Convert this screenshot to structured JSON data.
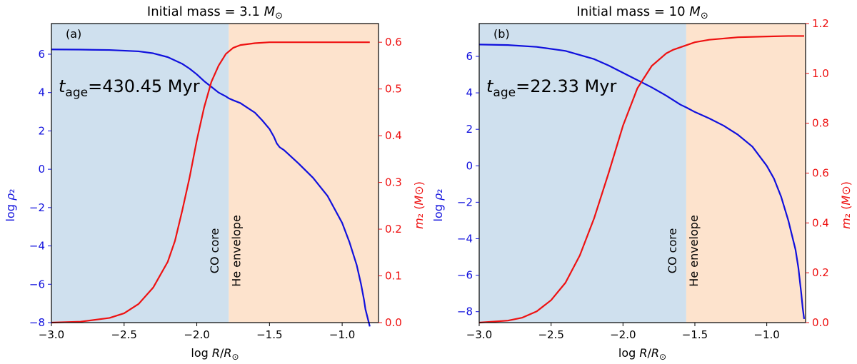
{
  "chart_data": [
    {
      "type": "line",
      "title": "Initial mass = 3.1 M⊙",
      "panel_label": "(a)",
      "age_label": "t_age=430.45 Myr",
      "xlabel": "log R/R⊙",
      "ylabel_left": "log ρ₂",
      "ylabel_right": "m₂ (M⊙)",
      "xlim": [
        -3.0,
        -0.75
      ],
      "ylim_left": [
        -8,
        7.6
      ],
      "ylim_right": [
        0,
        0.64
      ],
      "x_ticks": [
        -3.0,
        -2.5,
        -2.0,
        -1.5,
        -1.0
      ],
      "x_tick_labels": [
        "−3.0",
        "−2.5",
        "−2.0",
        "−1.5",
        "−1.0"
      ],
      "left_ticks": [
        -8,
        -6,
        -4,
        -2,
        0,
        2,
        4,
        6
      ],
      "left_tick_labels": [
        "−8",
        "−6",
        "−4",
        "−2",
        "0",
        "2",
        "4",
        "6"
      ],
      "right_ticks": [
        0.0,
        0.1,
        0.2,
        0.3,
        0.4,
        0.5,
        0.6
      ],
      "right_tick_labels": [
        "0.0",
        "0.1",
        "0.2",
        "0.3",
        "0.4",
        "0.5",
        "0.6"
      ],
      "regions": [
        {
          "label": "CO core",
          "x0": -3.0,
          "x1": -1.78,
          "color": "#cfe0ee",
          "label_x": -1.85
        },
        {
          "label": "He envelope",
          "x0": -1.78,
          "x1": -0.75,
          "color": "#fde3cd",
          "label_x": -1.7
        }
      ],
      "series": [
        {
          "axis": "left",
          "color": "#1010dd",
          "x": [
            -3.0,
            -2.8,
            -2.6,
            -2.4,
            -2.3,
            -2.2,
            -2.1,
            -2.05,
            -2.0,
            -1.95,
            -1.9,
            -1.85,
            -1.8,
            -1.78,
            -1.75,
            -1.7,
            -1.65,
            -1.6,
            -1.55,
            -1.5,
            -1.47,
            -1.45,
            -1.43,
            -1.4,
            -1.35,
            -1.3,
            -1.2,
            -1.1,
            -1.0,
            -0.95,
            -0.9,
            -0.87,
            -0.85,
            -0.84,
            -0.82,
            -0.81
          ],
          "values": [
            6.25,
            6.24,
            6.22,
            6.15,
            6.05,
            5.85,
            5.5,
            5.25,
            4.95,
            4.6,
            4.3,
            4.0,
            3.8,
            3.7,
            3.6,
            3.45,
            3.2,
            2.95,
            2.55,
            2.1,
            1.7,
            1.35,
            1.15,
            1.0,
            0.65,
            0.3,
            -0.45,
            -1.4,
            -2.8,
            -3.8,
            -5.0,
            -6.0,
            -6.8,
            -7.3,
            -7.9,
            -8.2
          ]
        },
        {
          "axis": "right",
          "color": "#ee1111",
          "x": [
            -3.0,
            -2.8,
            -2.6,
            -2.5,
            -2.4,
            -2.3,
            -2.2,
            -2.15,
            -2.1,
            -2.05,
            -2.0,
            -1.95,
            -1.9,
            -1.85,
            -1.8,
            -1.75,
            -1.7,
            -1.6,
            -1.5,
            -1.4,
            -1.2,
            -1.0,
            -0.81
          ],
          "values": [
            0.0,
            0.002,
            0.01,
            0.02,
            0.04,
            0.075,
            0.13,
            0.175,
            0.24,
            0.31,
            0.39,
            0.46,
            0.515,
            0.55,
            0.575,
            0.588,
            0.594,
            0.598,
            0.6,
            0.6,
            0.6,
            0.6,
            0.6
          ]
        }
      ]
    },
    {
      "type": "line",
      "title": "Initial mass = 10 M⊙",
      "panel_label": "(b)",
      "age_label": "t_age=22.33 Myr",
      "xlabel": "log R/R⊙",
      "ylabel_left": "log ρ₂",
      "ylabel_right": "m₂ (M⊙)",
      "xlim": [
        -3.0,
        -0.73
      ],
      "ylim_left": [
        -8.6,
        7.8
      ],
      "ylim_right": [
        0,
        1.2
      ],
      "x_ticks": [
        -3.0,
        -2.5,
        -2.0,
        -1.5,
        -1.0
      ],
      "x_tick_labels": [
        "−3.0",
        "−2.5",
        "−2.0",
        "−1.5",
        "−1.0"
      ],
      "left_ticks": [
        -8,
        -6,
        -4,
        -2,
        0,
        2,
        4,
        6
      ],
      "left_tick_labels": [
        "−8",
        "−6",
        "−4",
        "−2",
        "0",
        "2",
        "4",
        "6"
      ],
      "right_ticks": [
        0.0,
        0.2,
        0.4,
        0.6,
        0.8,
        1.0,
        1.2
      ],
      "right_tick_labels": [
        "0.0",
        "0.2",
        "0.4",
        "0.6",
        "0.8",
        "1.0",
        "1.2"
      ],
      "regions": [
        {
          "label": "CO core",
          "x0": -3.0,
          "x1": -1.56,
          "color": "#cfe0ee",
          "label_x": -1.63
        },
        {
          "label": "He envelope",
          "x0": -1.56,
          "x1": -0.73,
          "color": "#fde3cd",
          "label_x": -1.48
        }
      ],
      "series": [
        {
          "axis": "left",
          "color": "#1010dd",
          "x": [
            -3.0,
            -2.8,
            -2.6,
            -2.4,
            -2.2,
            -2.1,
            -2.0,
            -1.9,
            -1.8,
            -1.7,
            -1.6,
            -1.56,
            -1.5,
            -1.4,
            -1.3,
            -1.2,
            -1.1,
            -1.0,
            -0.95,
            -0.9,
            -0.85,
            -0.8,
            -0.78,
            -0.76,
            -0.75,
            -0.74
          ],
          "values": [
            6.65,
            6.62,
            6.52,
            6.3,
            5.85,
            5.5,
            5.1,
            4.7,
            4.3,
            3.85,
            3.35,
            3.2,
            2.95,
            2.6,
            2.2,
            1.7,
            1.05,
            0.0,
            -0.7,
            -1.7,
            -3.0,
            -4.6,
            -5.6,
            -7.0,
            -7.8,
            -8.4
          ]
        },
        {
          "axis": "right",
          "color": "#ee1111",
          "x": [
            -3.0,
            -2.8,
            -2.7,
            -2.6,
            -2.5,
            -2.4,
            -2.3,
            -2.2,
            -2.1,
            -2.0,
            -1.9,
            -1.8,
            -1.7,
            -1.65,
            -1.6,
            -1.55,
            -1.5,
            -1.4,
            -1.3,
            -1.2,
            -1.0,
            -0.85,
            -0.74
          ],
          "values": [
            0.0,
            0.008,
            0.02,
            0.045,
            0.09,
            0.16,
            0.27,
            0.42,
            0.6,
            0.79,
            0.94,
            1.03,
            1.08,
            1.095,
            1.105,
            1.115,
            1.125,
            1.135,
            1.14,
            1.145,
            1.148,
            1.15,
            1.15
          ]
        }
      ]
    }
  ]
}
